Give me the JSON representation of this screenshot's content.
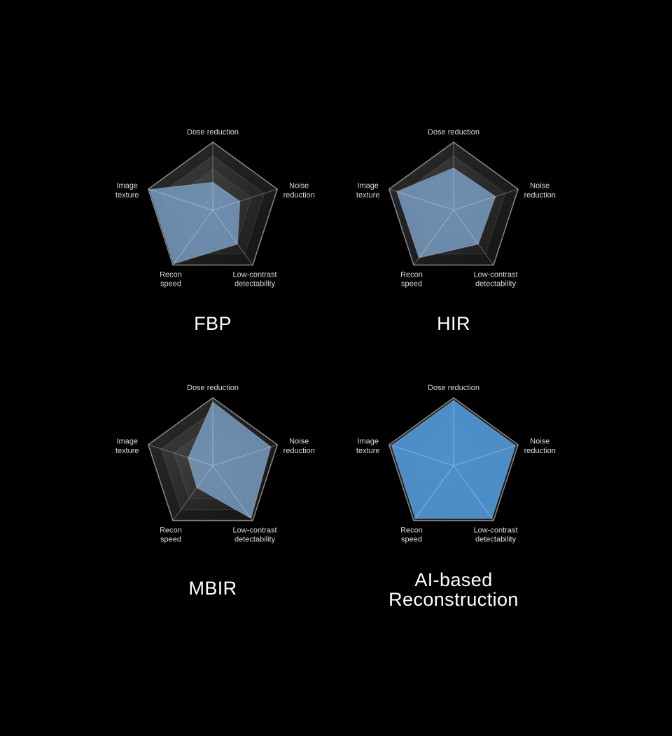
{
  "page": {
    "background": "#000000"
  },
  "chart_data": {
    "type": "radar",
    "description": "Four pentagon radar charts comparing CT image reconstruction methods on five criteria",
    "layout": "2x2 grid, black background, legend-free, one titled radar per cell",
    "axes": [
      "Dose reduction",
      "Noise reduction",
      "Low-contrast detectability",
      "Recon speed",
      "Image texture"
    ],
    "axis_label_lines": [
      [
        "Dose reduction"
      ],
      [
        "Noise",
        "reduction"
      ],
      [
        "Low-contrast",
        "detectability"
      ],
      [
        "Recon",
        "speed"
      ],
      [
        "Image",
        "texture"
      ]
    ],
    "scale": {
      "min": 0,
      "max": 5,
      "rings": 5
    },
    "style": {
      "label_color": "#d9d9d9",
      "title_color": "#ffffff",
      "spoke_color": "rgba(255,255,255,0.30)",
      "ring_outline_color": "rgba(255,255,255,0.10)",
      "outer_rim_color": "rgba(255,255,255,0.50)",
      "data_edge_color": "rgba(255,255,255,0.25)",
      "muted_fill": "#7396b8",
      "highlight_fill": "#4f93d2",
      "ring_shades": [
        [
          "#2b2b2b",
          "#141414"
        ],
        [
          "#3c3c3c",
          "#1d1d1d"
        ],
        [
          "#464646",
          "#242424"
        ],
        [
          "#505050",
          "#2a2a2a"
        ],
        [
          "#595959",
          "#313131"
        ]
      ]
    },
    "series": [
      {
        "name": "FBP",
        "values": [
          2.05,
          2.1,
          3.1,
          4.9,
          4.9
        ],
        "fill": "#7396b8",
        "fill_opacity": 0.9
      },
      {
        "name": "HIR",
        "values": [
          3.1,
          3.25,
          3.1,
          4.35,
          4.4
        ],
        "fill": "#7396b8",
        "fill_opacity": 0.9
      },
      {
        "name": "MBIR",
        "values": [
          4.7,
          4.5,
          4.8,
          2.0,
          1.9
        ],
        "fill": "#7396b8",
        "fill_opacity": 0.9
      },
      {
        "name": "AI-based\nReconstruction",
        "values": [
          4.8,
          4.8,
          4.8,
          4.8,
          4.8
        ],
        "fill": "#4f93d2",
        "fill_opacity": 0.95
      }
    ]
  }
}
